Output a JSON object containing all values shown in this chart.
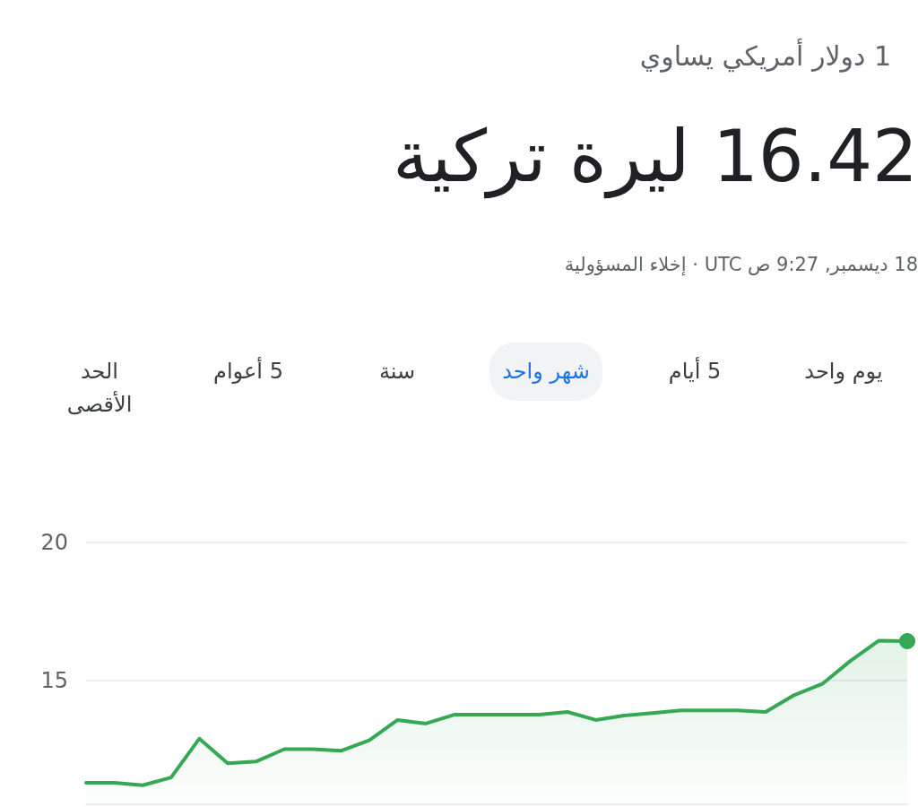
{
  "chart_data": {
    "type": "area",
    "subtitle": "1 دولار أمريكي يساوي",
    "title": "16.42 ليرة تركية",
    "annotations": [
      "18 ديسمبر, 9:27 ص UTC · إخلاء المسؤولية",
      "يوم واحد",
      "5 أيام",
      "شهر واحد",
      "سنة",
      "5 أعوام",
      "الحد الأقصى"
    ],
    "categories": [
      null,
      null,
      null,
      null,
      null,
      null,
      null,
      null,
      null,
      null,
      null,
      null,
      null,
      null,
      null,
      null,
      null,
      null,
      null,
      null,
      null,
      null,
      null,
      null,
      null,
      null,
      null,
      null,
      null,
      null
    ],
    "series": [
      {
        "color": "#34a853",
        "values": [
          11.28,
          11.28,
          11.19,
          11.47,
          12.88,
          11.99,
          12.05,
          12.5,
          12.5,
          12.44,
          12.82,
          13.56,
          13.43,
          13.75,
          13.75,
          13.75,
          13.75,
          13.85,
          13.56,
          13.72,
          13.81,
          13.91,
          13.91,
          13.91,
          13.85,
          14.46,
          14.87,
          15.71,
          16.44,
          16.42
        ]
      }
    ],
    "ylim": [
      10.5,
      20
    ],
    "yticks": [
      15,
      20
    ],
    "grid": "y",
    "tick_labels": "y"
  }
}
